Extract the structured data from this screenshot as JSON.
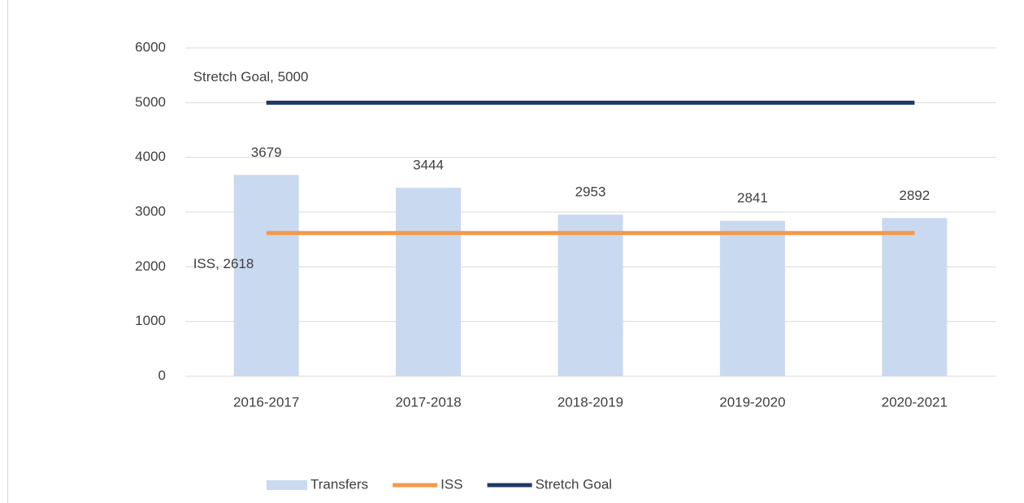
{
  "chart_data": {
    "type": "combo",
    "categories": [
      "2016-2017",
      "2017-2018",
      "2018-2019",
      "2019-2020",
      "2020-2021"
    ],
    "series": [
      {
        "name": "Transfers",
        "type": "bar",
        "color": "#c9d9f0",
        "values": [
          3679,
          3444,
          2953,
          2841,
          2892
        ]
      },
      {
        "name": "ISS",
        "type": "line",
        "color": "#f4994a",
        "values": [
          2618,
          2618,
          2618,
          2618,
          2618
        ],
        "value_labels": [
          "ISS, 2618",
          null,
          null,
          null,
          null
        ]
      },
      {
        "name": "Stretch Goal",
        "type": "line",
        "color": "#203864",
        "values": [
          5000,
          5000,
          5000,
          5000,
          5000
        ],
        "value_labels": [
          "Stretch Goal, 5000",
          null,
          null,
          null,
          null
        ]
      }
    ],
    "ylim": [
      0,
      6000
    ],
    "yticks": [
      0,
      1000,
      2000,
      3000,
      4000,
      5000,
      6000
    ],
    "grid": true,
    "legend": "bottom"
  }
}
